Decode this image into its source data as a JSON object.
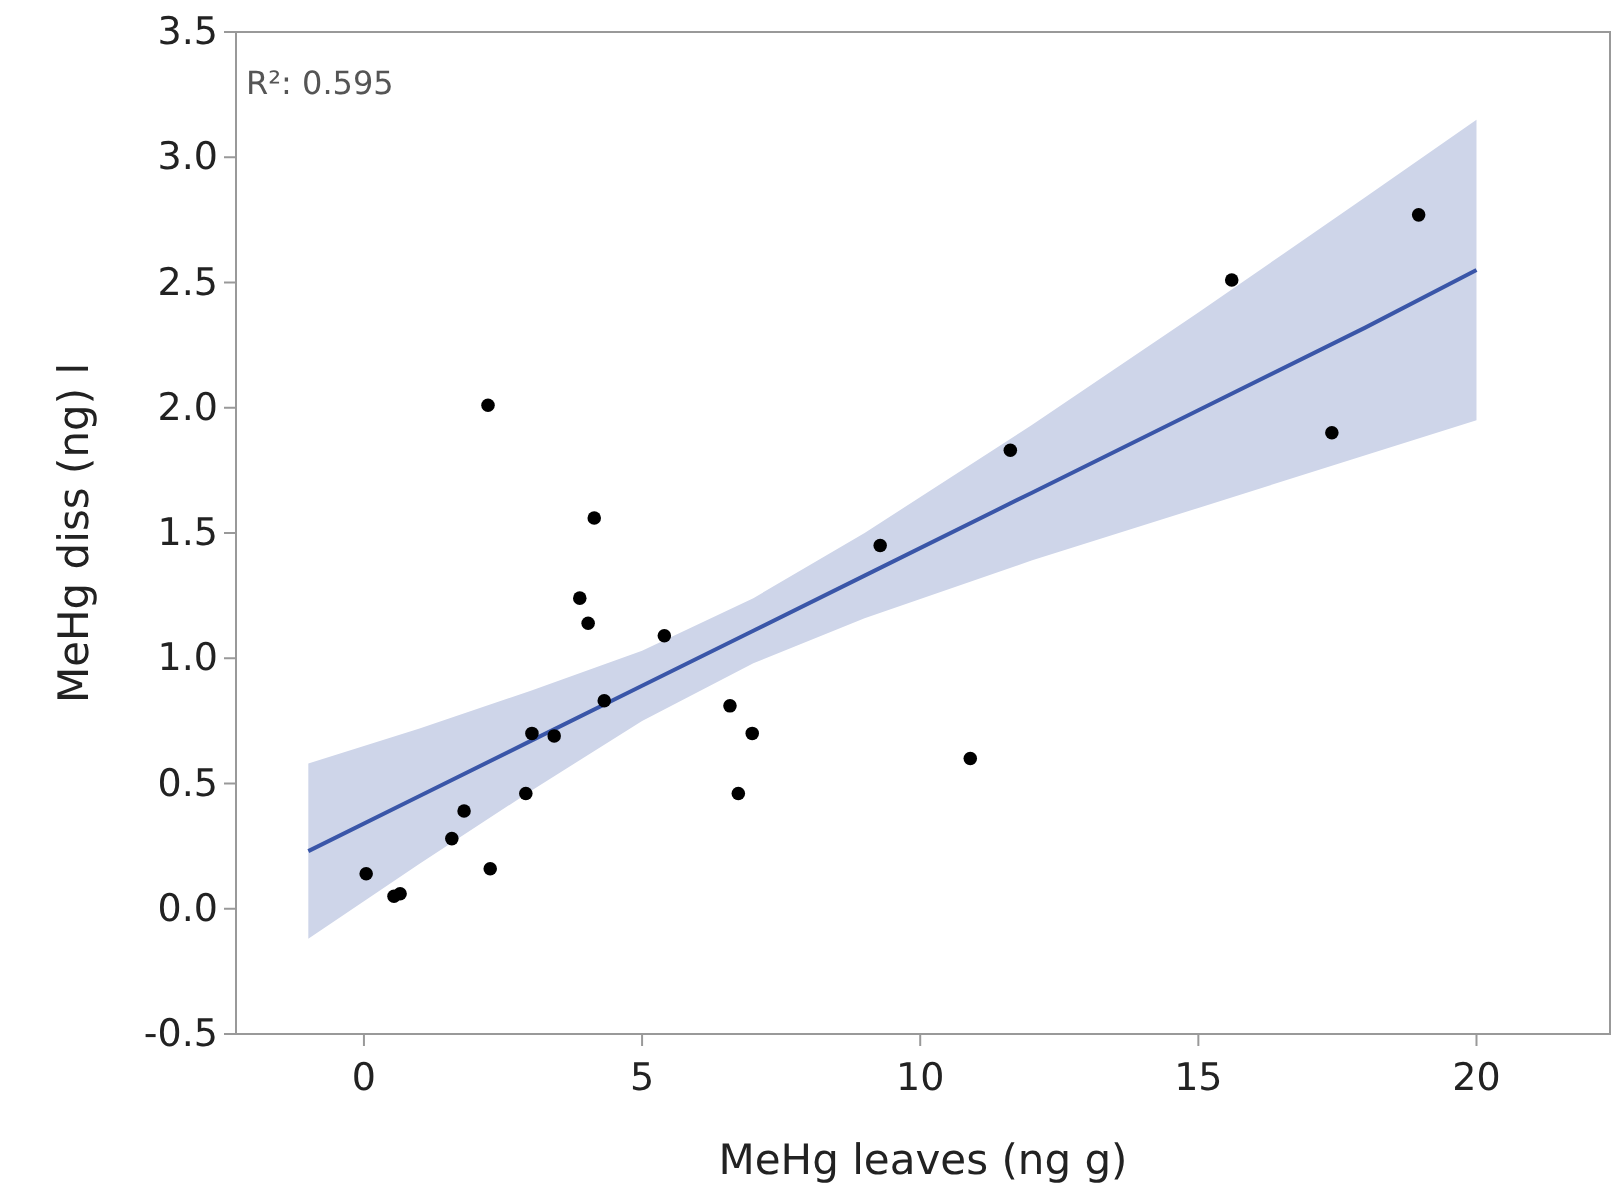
{
  "chart_data": {
    "type": "scatter",
    "xlabel": "MeHg leaves (ng g)",
    "ylabel": "MeHg diss (ng) l",
    "annotations": [
      "R²: 0.595"
    ],
    "xlim": [
      -2.3,
      22.4
    ],
    "xticks": [
      0,
      5,
      10,
      15,
      20
    ],
    "ylim": [
      -0.5,
      3.5
    ],
    "yticks": [
      {
        "value": -0.5,
        "label": "-0.5"
      },
      {
        "value": 0,
        "label": "0.0"
      },
      {
        "value": 0.5,
        "label": "0.5"
      },
      {
        "value": 1,
        "label": "1.0"
      },
      {
        "value": 1.5,
        "label": "1.5"
      },
      {
        "value": 2,
        "label": "2.0"
      },
      {
        "value": 2.5,
        "label": "2.5"
      },
      {
        "value": 3,
        "label": "3.0"
      },
      {
        "value": 3.5,
        "label": "3.5"
      }
    ],
    "grid": false,
    "marker": "circle",
    "series": [
      {
        "type": "line",
        "color": "#3a56a8",
        "marker": "none",
        "x": [
          -1,
          1,
          3,
          5,
          7,
          9,
          12,
          15,
          18,
          20
        ],
        "values": [
          0.23,
          0.45,
          0.67,
          0.89,
          1.11,
          1.33,
          1.66,
          1.99,
          2.32,
          2.55
        ],
        "lower": [
          -0.12,
          0.18,
          0.47,
          0.75,
          0.98,
          1.16,
          1.39,
          1.6,
          1.81,
          1.95
        ],
        "upper": [
          0.58,
          0.72,
          0.87,
          1.03,
          1.24,
          1.5,
          1.93,
          2.38,
          2.84,
          3.15
        ]
      },
      {
        "color": "#000000",
        "x": [
          0.04,
          0.54,
          0.65,
          1.58,
          1.8,
          2.23,
          2.27,
          2.91,
          3.02,
          3.42,
          3.88,
          4.03,
          4.14,
          4.32,
          5.4,
          6.58,
          6.73,
          6.98,
          9.28,
          10.9,
          11.62,
          15.6,
          17.4,
          18.96
        ],
        "values": [
          0.14,
          0.05,
          0.06,
          0.28,
          0.39,
          2.01,
          0.16,
          0.46,
          0.7,
          0.69,
          1.24,
          1.14,
          1.56,
          0.83,
          1.09,
          0.81,
          0.46,
          0.7,
          1.45,
          0.6,
          1.83,
          2.51,
          1.9,
          2.77
        ]
      }
    ]
  }
}
